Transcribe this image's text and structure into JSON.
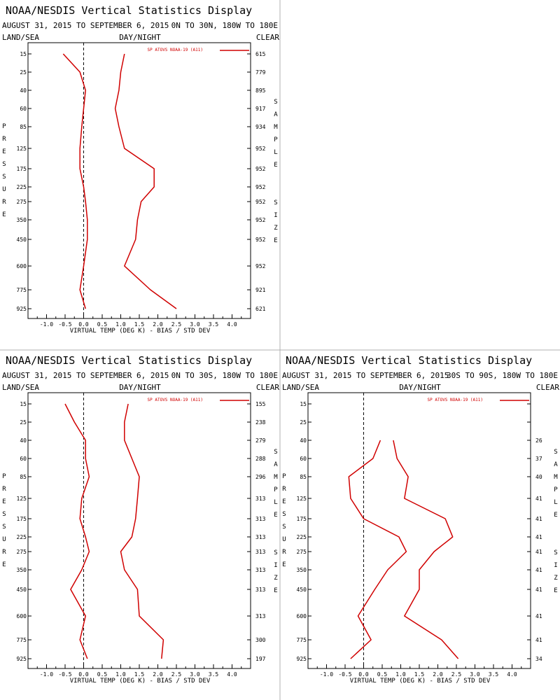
{
  "colors": {
    "line": "#d00000",
    "frame": "#000000",
    "divider": "#b0b0b0",
    "zero_line": "#000000"
  },
  "chart_data": [
    {
      "type": "line",
      "title": "NOAA/NESDIS Vertical Statistics Display",
      "date_range": "AUGUST 31, 2015 TO SEPTEMBER 6, 2015",
      "region": "0N TO 30N, 180W TO 180E",
      "surface_label": "LAND/SEA",
      "time_label": "DAY/NIGHT",
      "sky_label": "CLEAR",
      "xlabel": "VIRTUAL TEMP (DEG K) - BIAS / STD DEV",
      "ylabel": "PRESSURE",
      "y2label": "SAMPLE SIZE",
      "legend": "SP ATOVS NOAA-19 (A11)",
      "legend_position": "top-right",
      "x_ticks": [
        "-1.0",
        "-0.5",
        "0.0",
        "0.5",
        "1.0",
        "1.5",
        "2.0",
        "2.5",
        "3.0",
        "3.5",
        "4.0"
      ],
      "xlim": [
        -1.5,
        4.5
      ],
      "pressure_levels": [
        15,
        25,
        40,
        60,
        85,
        125,
        175,
        225,
        275,
        350,
        450,
        600,
        775,
        925
      ],
      "sample_size": [
        "615",
        "779",
        "895",
        "917",
        "934",
        "952",
        "952",
        "952",
        "952",
        "952",
        "952",
        "952",
        "921",
        "621"
      ],
      "series": [
        {
          "values": [
            -0.55,
            -0.1,
            0.05,
            0.0,
            -0.05,
            -0.1,
            -0.1,
            0.0,
            0.05,
            0.1,
            0.1,
            0.0,
            -0.1,
            0.05
          ]
        },
        {
          "values": [
            1.1,
            1.0,
            0.95,
            0.85,
            0.95,
            1.1,
            1.9,
            1.9,
            1.55,
            1.45,
            1.4,
            1.1,
            1.8,
            2.5
          ]
        }
      ]
    },
    {
      "type": "line",
      "title": "NOAA/NESDIS Vertical Statistics Display",
      "date_range": "AUGUST 31, 2015 TO SEPTEMBER 6, 2015",
      "region": "0N TO 30S, 180W TO 180E",
      "surface_label": "LAND/SEA",
      "time_label": "DAY/NIGHT",
      "sky_label": "CLEAR",
      "xlabel": "VIRTUAL TEMP (DEG K) - BIAS / STD DEV",
      "ylabel": "PRESSURE",
      "y2label": "SAMPLE SIZE",
      "legend": "SP ATOVS NOAA-19 (A11)",
      "legend_position": "top-right",
      "x_ticks": [
        "-1.0",
        "-0.5",
        "0.0",
        "0.5",
        "1.0",
        "1.5",
        "2.0",
        "2.5",
        "3.0",
        "3.5",
        "4.0"
      ],
      "xlim": [
        -1.5,
        4.5
      ],
      "pressure_levels": [
        15,
        25,
        40,
        60,
        85,
        125,
        175,
        225,
        275,
        350,
        450,
        600,
        775,
        925
      ],
      "sample_size": [
        "155",
        "238",
        "279",
        "288",
        "296",
        "313",
        "313",
        "313",
        "313",
        "313",
        "313",
        "313",
        "300",
        "197"
      ],
      "series": [
        {
          "values": [
            -0.5,
            -0.25,
            0.05,
            0.05,
            0.15,
            -0.05,
            -0.1,
            0.05,
            0.15,
            -0.05,
            -0.35,
            0.05,
            -0.1,
            0.1
          ]
        },
        {
          "values": [
            1.2,
            1.1,
            1.1,
            1.3,
            1.5,
            1.45,
            1.4,
            1.3,
            1.0,
            1.1,
            1.45,
            1.5,
            2.15,
            2.1
          ]
        }
      ]
    },
    {
      "type": "line",
      "title": "NOAA/NESDIS Vertical Statistics Display",
      "date_range": "AUGUST 31, 2015 TO SEPTEMBER 6, 2015",
      "region": "30S TO 90S, 180W TO 180E",
      "surface_label": "LAND/SEA",
      "time_label": "DAY/NIGHT",
      "sky_label": "CLEAR",
      "xlabel": "VIRTUAL TEMP (DEG K) - BIAS / STD DEV",
      "ylabel": "PRESSURE",
      "y2label": "SAMPLE SIZE",
      "legend": "SP ATOVS NOAA-19 (A11)",
      "legend_position": "top-right",
      "x_ticks": [
        "-1.0",
        "-0.5",
        "0.0",
        "0.5",
        "1.0",
        "1.5",
        "2.0",
        "2.5",
        "3.0",
        "3.5",
        "4.0"
      ],
      "xlim": [
        -1.5,
        4.5
      ],
      "pressure_levels": [
        15,
        25,
        40,
        60,
        85,
        125,
        175,
        225,
        275,
        350,
        450,
        600,
        775,
        925
      ],
      "sample_size": [
        "",
        "",
        "26",
        "37",
        "40",
        "41",
        "41",
        "41",
        "41",
        "41",
        "41",
        "41",
        "41",
        "34"
      ],
      "series": [
        {
          "values": [
            null,
            null,
            0.45,
            0.25,
            -0.4,
            -0.35,
            0.0,
            0.95,
            1.15,
            0.65,
            0.3,
            -0.15,
            0.2,
            -0.35
          ]
        },
        {
          "values": [
            null,
            null,
            0.8,
            0.9,
            1.2,
            1.1,
            2.2,
            2.4,
            1.9,
            1.5,
            1.5,
            1.1,
            2.1,
            2.55
          ]
        }
      ]
    }
  ]
}
